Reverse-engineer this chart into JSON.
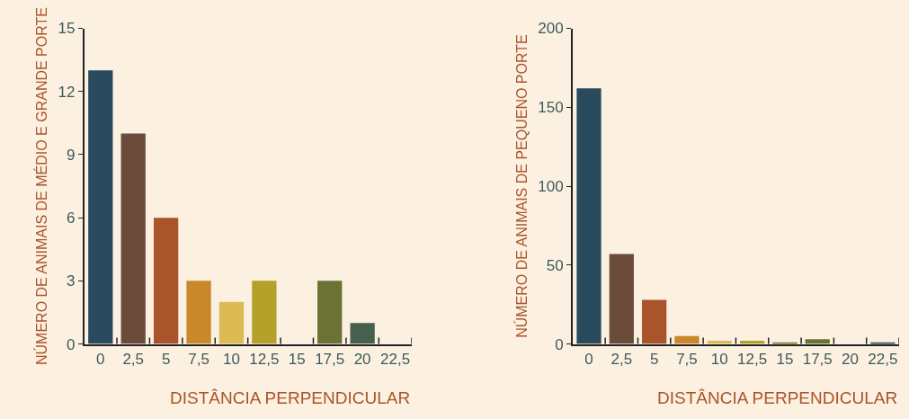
{
  "chart_data": [
    {
      "type": "bar",
      "categories": [
        "0",
        "2,5",
        "5",
        "7,5",
        "10",
        "12,5",
        "15",
        "17,5",
        "20",
        "22,5"
      ],
      "values": [
        13,
        10,
        6,
        3,
        2,
        3,
        0,
        3,
        1,
        0
      ],
      "colors": [
        "#2a4a5e",
        "#6b4c3b",
        "#a9542a",
        "#c9882c",
        "#dcbb55",
        "#b5a02a",
        "#7d7a2e",
        "#6a7234",
        "#46604f",
        "#2f5560"
      ],
      "xlabel": "DISTÂNCIA PERPENDICULAR",
      "ylabel": "NÚMERO DE ANIMAIS DE MÉDIO E GRANDE PORTE",
      "ylim": [
        0,
        15
      ],
      "yticks": [
        0,
        3,
        6,
        9,
        12,
        15
      ],
      "grid": false
    },
    {
      "type": "bar",
      "categories": [
        "0",
        "2,5",
        "5",
        "7,5",
        "10",
        "12,5",
        "15",
        "17,5",
        "20",
        "22,5"
      ],
      "values": [
        162,
        57,
        28,
        5,
        2,
        2,
        1,
        3,
        0,
        1
      ],
      "colors": [
        "#2a4a5e",
        "#6b4c3b",
        "#a9542a",
        "#c9882c",
        "#dcbb55",
        "#b5a02a",
        "#7d7a2e",
        "#6a7234",
        "#46604f",
        "#2f5560"
      ],
      "xlabel": "DISTÂNCIA PERPENDICULAR",
      "ylabel": "NÚMERO DE ANIMAIS DE PEQUENO PORTE",
      "ylim": [
        0,
        200
      ],
      "yticks": [
        0,
        50,
        100,
        150,
        200
      ],
      "grid": false
    }
  ]
}
